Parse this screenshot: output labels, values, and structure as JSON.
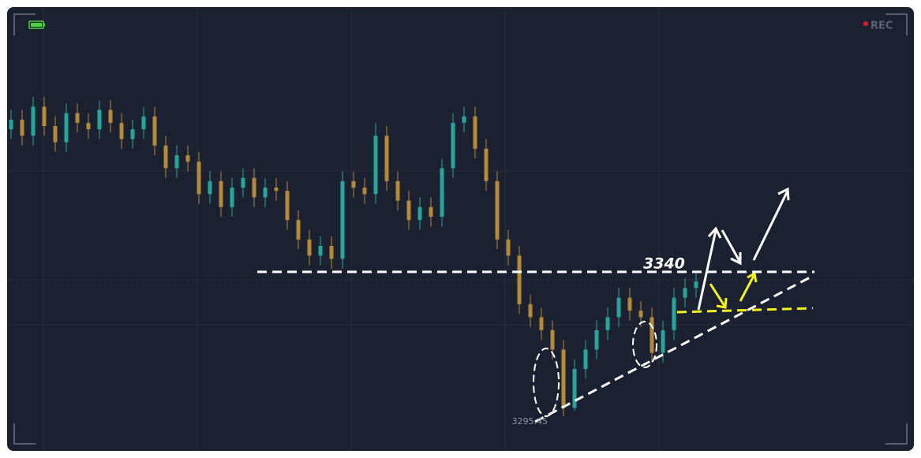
{
  "status": {
    "recording": "REC"
  },
  "chart_data": {
    "type": "candlestick",
    "open": [
      3384,
      3387,
      3382,
      3391,
      3385,
      3380,
      3389,
      3386,
      3384,
      3390,
      3386,
      3381,
      3384,
      3388,
      3379,
      3372,
      3376,
      3374,
      3364,
      3368,
      3360,
      3366,
      3369,
      3363,
      3366,
      3365,
      3356,
      3350,
      3345,
      3348,
      3344,
      3368,
      3366,
      3364,
      3382,
      3368,
      3362,
      3356,
      3360,
      3357,
      3372,
      3386,
      3388,
      3378,
      3368,
      3350,
      3345,
      3330,
      3326,
      3322,
      3316,
      3298,
      3310,
      3316,
      3322,
      3326,
      3332,
      3328,
      3326,
      3315,
      3322,
      3332,
      3335
    ],
    "high": [
      3390,
      3390,
      3394,
      3394,
      3388,
      3392,
      3392,
      3389,
      3393,
      3393,
      3389,
      3387,
      3391,
      3391,
      3382,
      3379,
      3379,
      3377,
      3371,
      3371,
      3369,
      3372,
      3372,
      3369,
      3369,
      3368,
      3359,
      3353,
      3351,
      3351,
      3371,
      3371,
      3369,
      3386,
      3385,
      3371,
      3365,
      3363,
      3363,
      3375,
      3389,
      3391,
      3391,
      3381,
      3371,
      3353,
      3348,
      3333,
      3329,
      3325,
      3319,
      3313,
      3319,
      3325,
      3329,
      3335,
      3335,
      3331,
      3329,
      3325,
      3335,
      3338,
      3340
    ],
    "low": [
      3381,
      3379,
      3379,
      3382,
      3377,
      3377,
      3383,
      3381,
      3381,
      3383,
      3378,
      3378,
      3381,
      3376,
      3369,
      3369,
      3371,
      3361,
      3361,
      3357,
      3357,
      3363,
      3360,
      3360,
      3362,
      3353,
      3347,
      3342,
      3342,
      3341,
      3341,
      3363,
      3361,
      3361,
      3365,
      3359,
      3353,
      3353,
      3354,
      3354,
      3369,
      3383,
      3375,
      3365,
      3347,
      3342,
      3327,
      3323,
      3319,
      3313,
      3295.45,
      3297,
      3307,
      3313,
      3319,
      3323,
      3325,
      3323,
      3312,
      3312,
      3319,
      3329,
      3332
    ],
    "close": [
      3387,
      3382,
      3391,
      3385,
      3380,
      3389,
      3386,
      3384,
      3390,
      3386,
      3381,
      3384,
      3388,
      3379,
      3372,
      3376,
      3374,
      3364,
      3368,
      3360,
      3366,
      3369,
      3363,
      3366,
      3365,
      3356,
      3350,
      3345,
      3348,
      3344,
      3368,
      3366,
      3364,
      3382,
      3368,
      3362,
      3356,
      3360,
      3357,
      3372,
      3386,
      3388,
      3378,
      3368,
      3350,
      3345,
      3330,
      3326,
      3322,
      3316,
      3298,
      3310,
      3316,
      3322,
      3326,
      3332,
      3328,
      3326,
      3315,
      3322,
      3332,
      3335,
      3337
    ],
    "up_color": "#26a69a",
    "down_color": "#b5893a",
    "ylim": [
      3285.2,
      3421.5
    ],
    "level": 3340
  }
}
